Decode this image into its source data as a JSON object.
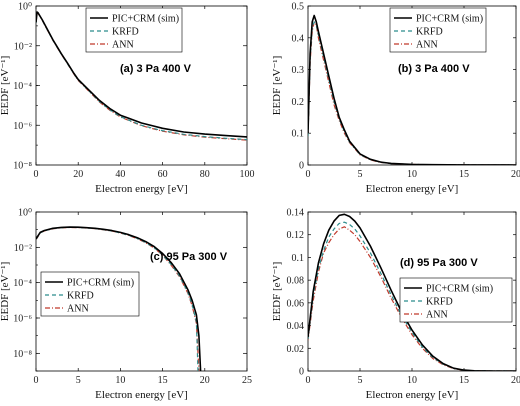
{
  "colors": {
    "sim": "#000000",
    "krfd": "#2b8c8c",
    "ann": "#c0392b"
  },
  "chart_data": [
    {
      "type": "line",
      "title": "(a) 3 Pa 400 V",
      "xlabel": "Electron energy [eV]",
      "ylabel": "EEDF [eV⁻¹]",
      "xlim": [
        0,
        100
      ],
      "ylim": [
        1e-08,
        1
      ],
      "yscale": "log",
      "xticks": [
        "0",
        "20",
        "40",
        "60",
        "80",
        "100"
      ],
      "yticks": [
        "10⁻⁸",
        "10⁻⁶",
        "10⁻⁴",
        "10⁻²",
        "10⁰"
      ],
      "legend": "top-right",
      "series": [
        {
          "name": "PIC+CRM (sim)",
          "style": "solid",
          "x": [
            0,
            0.5,
            1,
            2,
            3,
            5,
            8,
            10,
            12,
            15,
            18,
            20,
            25,
            30,
            35,
            40,
            50,
            60,
            70,
            80,
            90,
            100
          ],
          "y": [
            0.15,
            0.5,
            0.45,
            0.3,
            0.2,
            0.08,
            0.02,
            0.009,
            0.004,
            0.0013,
            0.0004,
            0.0002,
            6e-05,
            1.8e-05,
            7e-06,
            3.2e-06,
            1.3e-06,
            7e-07,
            4.6e-07,
            3.6e-07,
            3e-07,
            2.6e-07
          ]
        },
        {
          "name": "KRFD",
          "style": "dashed",
          "x": [
            0,
            0.5,
            1,
            2,
            3,
            5,
            8,
            10,
            12,
            15,
            18,
            20,
            25,
            30,
            35,
            40,
            50,
            60,
            70,
            80,
            90,
            100
          ],
          "y": [
            0.14,
            0.48,
            0.43,
            0.29,
            0.19,
            0.075,
            0.019,
            0.0085,
            0.0038,
            0.0012,
            0.00038,
            0.00019,
            5.5e-05,
            1.6e-05,
            6e-06,
            2.7e-06,
            1e-06,
            5.3e-07,
            3.5e-07,
            2.7e-07,
            2.2e-07,
            1.9e-07
          ]
        },
        {
          "name": "ANN",
          "style": "dashdot",
          "x": [
            0,
            0.5,
            1,
            2,
            3,
            5,
            8,
            10,
            12,
            15,
            18,
            20,
            25,
            30,
            35,
            40,
            50,
            60,
            70,
            80,
            90,
            100
          ],
          "y": [
            0.14,
            0.47,
            0.42,
            0.29,
            0.19,
            0.074,
            0.019,
            0.0084,
            0.0037,
            0.0012,
            0.00037,
            0.00018,
            5.2e-05,
            1.5e-05,
            5.7e-06,
            2.6e-06,
            9.5e-07,
            5e-07,
            3.3e-07,
            2.5e-07,
            2.1e-07,
            1.8e-07
          ]
        }
      ]
    },
    {
      "type": "line",
      "title": "(b) 3 Pa 400 V",
      "xlabel": "Electron energy [eV]",
      "ylabel": "EEDF [eV⁻¹]",
      "xlim": [
        0,
        20
      ],
      "ylim": [
        0,
        0.5
      ],
      "yscale": "linear",
      "xticks": [
        "0",
        "5",
        "10",
        "15",
        "20"
      ],
      "yticks": [
        "0",
        "0.1",
        "0.2",
        "0.3",
        "0.4",
        "0.5"
      ],
      "legend": "top-right",
      "series": [
        {
          "name": "PIC+CRM (sim)",
          "style": "solid",
          "x": [
            0,
            0.2,
            0.4,
            0.6,
            0.8,
            1,
            1.5,
            2,
            2.5,
            3,
            3.5,
            4,
            5,
            6,
            7,
            8,
            10,
            12,
            15,
            20
          ],
          "y": [
            0.1,
            0.35,
            0.45,
            0.47,
            0.45,
            0.42,
            0.35,
            0.28,
            0.21,
            0.15,
            0.11,
            0.075,
            0.035,
            0.018,
            0.009,
            0.005,
            0.002,
            0.0008,
            0.0003,
            0.0001
          ]
        },
        {
          "name": "KRFD",
          "style": "dashed",
          "x": [
            0,
            0.2,
            0.4,
            0.6,
            0.8,
            1,
            1.5,
            2,
            2.5,
            3,
            3.5,
            4,
            5,
            6,
            7,
            8,
            10,
            12,
            15,
            20
          ],
          "y": [
            0.09,
            0.33,
            0.43,
            0.45,
            0.44,
            0.41,
            0.34,
            0.27,
            0.2,
            0.145,
            0.105,
            0.072,
            0.033,
            0.017,
            0.0085,
            0.0045,
            0.0018,
            0.0007,
            0.0003,
            0.0001
          ]
        },
        {
          "name": "ANN",
          "style": "dashdot",
          "x": [
            0,
            0.2,
            0.4,
            0.6,
            0.8,
            1,
            1.5,
            2,
            2.5,
            3,
            3.5,
            4,
            5,
            6,
            7,
            8,
            10,
            12,
            15,
            20
          ],
          "y": [
            0.09,
            0.32,
            0.42,
            0.45,
            0.44,
            0.4,
            0.33,
            0.26,
            0.19,
            0.14,
            0.1,
            0.07,
            0.032,
            0.016,
            0.008,
            0.0044,
            0.0018,
            0.0007,
            0.0003,
            0.0001
          ]
        }
      ]
    },
    {
      "type": "line",
      "title": "(c) 95 Pa 300 V",
      "xlabel": "Electron energy [eV]",
      "ylabel": "EEDF [eV⁻¹]",
      "xlim": [
        0,
        25
      ],
      "ylim": [
        1e-09,
        1
      ],
      "yscale": "log",
      "xticks": [
        "0",
        "5",
        "10",
        "15",
        "20",
        "25"
      ],
      "yticks": [
        "10⁻⁸",
        "10⁻⁶",
        "10⁻⁴",
        "10⁻²",
        "10⁰"
      ],
      "legend": "bottom-left",
      "series": [
        {
          "name": "PIC+CRM (sim)",
          "style": "solid",
          "x": [
            0,
            0.5,
            1,
            2,
            3,
            4,
            5,
            6,
            7,
            8,
            9,
            10,
            11,
            12,
            13,
            14,
            15,
            16,
            17,
            18,
            18.5,
            19,
            19.3,
            19.5
          ],
          "y": [
            0.03,
            0.07,
            0.09,
            0.12,
            0.135,
            0.14,
            0.138,
            0.13,
            0.12,
            0.105,
            0.088,
            0.07,
            0.052,
            0.035,
            0.021,
            0.011,
            0.0045,
            0.0014,
            0.00032,
            4e-05,
            1e-05,
            1.5e-06,
            1e-07,
            1e-09
          ]
        },
        {
          "name": "KRFD",
          "style": "dashed",
          "x": [
            0,
            0.5,
            1,
            2,
            3,
            4,
            5,
            6,
            7,
            8,
            9,
            10,
            11,
            12,
            13,
            14,
            15,
            16,
            17,
            18,
            18.5,
            19,
            19.2
          ],
          "y": [
            0.028,
            0.066,
            0.086,
            0.115,
            0.13,
            0.135,
            0.133,
            0.126,
            0.116,
            0.1,
            0.084,
            0.066,
            0.048,
            0.032,
            0.019,
            0.0095,
            0.0038,
            0.0011,
            0.00024,
            2.8e-05,
            6e-06,
            6e-07,
            1e-09
          ]
        },
        {
          "name": "ANN",
          "style": "dashdot",
          "x": [
            0,
            0.5,
            1,
            2,
            3,
            4,
            5,
            6,
            7,
            8,
            9,
            10,
            11,
            12,
            13,
            14,
            15,
            16,
            17,
            18,
            18.5,
            19,
            19.3
          ],
          "y": [
            0.027,
            0.064,
            0.085,
            0.112,
            0.128,
            0.132,
            0.13,
            0.124,
            0.114,
            0.098,
            0.083,
            0.065,
            0.047,
            0.031,
            0.018,
            0.009,
            0.0036,
            0.001,
            0.00022,
            2.5e-05,
            5e-06,
            5e-07,
            1e-09
          ]
        }
      ]
    },
    {
      "type": "line",
      "title": "(d) 95 Pa 300 V",
      "xlabel": "Electron energy [eV]",
      "ylabel": "EEDF [eV⁻¹]",
      "xlim": [
        0,
        20
      ],
      "ylim": [
        0,
        0.14
      ],
      "yscale": "linear",
      "xticks": [
        "0",
        "5",
        "10",
        "15",
        "20"
      ],
      "yticks": [
        "0",
        "0.02",
        "0.04",
        "0.06",
        "0.08",
        "0.1",
        "0.12",
        "0.14"
      ],
      "legend": "right",
      "series": [
        {
          "name": "PIC+CRM (sim)",
          "style": "solid",
          "x": [
            0,
            0.5,
            1,
            1.5,
            2,
            2.5,
            3,
            3.5,
            4,
            4.5,
            5,
            6,
            7,
            8,
            9,
            10,
            11,
            12,
            13,
            14,
            15,
            16,
            17,
            18,
            19,
            20
          ],
          "y": [
            0.03,
            0.07,
            0.095,
            0.112,
            0.124,
            0.132,
            0.137,
            0.138,
            0.136,
            0.132,
            0.126,
            0.11,
            0.091,
            0.071,
            0.052,
            0.036,
            0.023,
            0.013,
            0.0065,
            0.0025,
            0.0008,
            0.0002,
            5e-05,
            1e-05,
            0,
            0
          ]
        },
        {
          "name": "KRFD",
          "style": "dashed",
          "x": [
            0,
            0.5,
            1,
            1.5,
            2,
            2.5,
            3,
            3.5,
            4,
            4.5,
            5,
            6,
            7,
            8,
            9,
            10,
            11,
            12,
            13,
            14,
            15,
            16,
            17,
            18,
            19,
            20
          ],
          "y": [
            0.028,
            0.066,
            0.09,
            0.106,
            0.118,
            0.125,
            0.13,
            0.131,
            0.129,
            0.125,
            0.119,
            0.104,
            0.086,
            0.067,
            0.049,
            0.034,
            0.021,
            0.012,
            0.006,
            0.0023,
            0.0007,
            0.0002,
            5e-05,
            1e-05,
            0,
            0
          ]
        },
        {
          "name": "ANN",
          "style": "dashdot",
          "x": [
            0,
            0.5,
            1,
            1.5,
            2,
            2.5,
            3,
            3.5,
            4,
            4.5,
            5,
            6,
            7,
            8,
            9,
            10,
            11,
            12,
            13,
            14,
            15,
            16,
            17,
            18,
            19,
            20
          ],
          "y": [
            0.027,
            0.062,
            0.087,
            0.104,
            0.113,
            0.12,
            0.125,
            0.127,
            0.124,
            0.12,
            0.114,
            0.1,
            0.083,
            0.064,
            0.047,
            0.032,
            0.02,
            0.011,
            0.0055,
            0.002,
            0.0006,
            0.0002,
            5e-05,
            1e-05,
            0,
            0
          ]
        }
      ]
    }
  ]
}
